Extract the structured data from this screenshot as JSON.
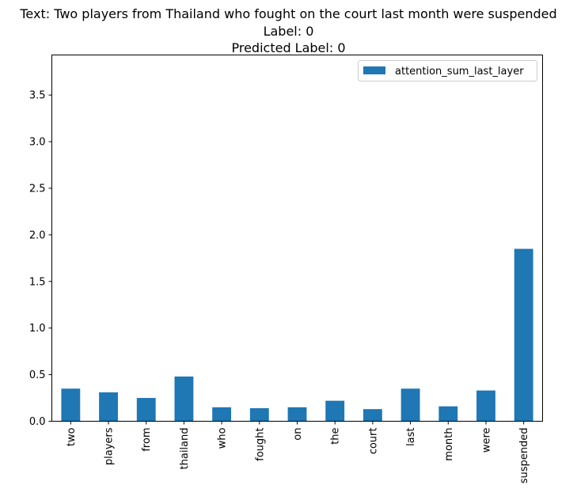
{
  "chart_data": {
    "type": "bar",
    "title_lines": [
      "Text: Two players from Thailand who fought on the court last month were suspended",
      "Label: 0",
      "Predicted Label: 0"
    ],
    "categories": [
      "two",
      "players",
      "from",
      "thailand",
      "who",
      "fought",
      "on",
      "the",
      "court",
      "last",
      "month",
      "were",
      "suspended"
    ],
    "series": [
      {
        "name": "attention_sum_last_layer",
        "color": "#1f77b4",
        "values": [
          0.35,
          0.31,
          0.25,
          0.48,
          0.15,
          0.14,
          0.15,
          0.22,
          0.13,
          0.35,
          0.16,
          0.33,
          1.85
        ]
      }
    ],
    "ylim": [
      0,
      3.93
    ],
    "yticks": [
      0.0,
      0.5,
      1.0,
      1.5,
      2.0,
      2.5,
      3.0,
      3.5
    ],
    "ytick_labels": [
      "0.0",
      "0.5",
      "1.0",
      "1.5",
      "2.0",
      "2.5",
      "3.0",
      "3.5"
    ],
    "xlabel": "",
    "ylabel": "",
    "grid": false,
    "legend_position": "top-right"
  }
}
